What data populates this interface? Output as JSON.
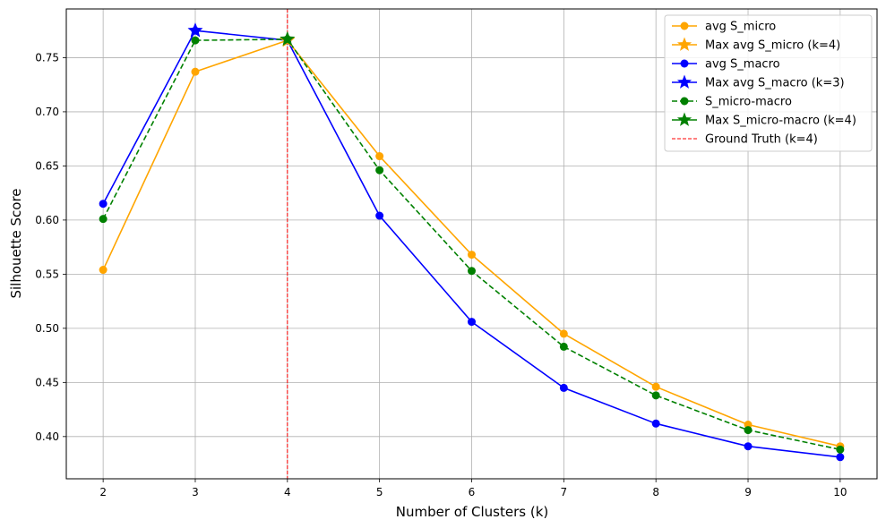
{
  "chart_data": {
    "type": "line",
    "title": "",
    "xlabel": "Number of Clusters (k)",
    "ylabel": "Silhouette Score",
    "x": [
      2,
      3,
      4,
      5,
      6,
      7,
      8,
      9,
      10
    ],
    "xlim": [
      1.6,
      10.4
    ],
    "ylim": [
      0.361,
      0.795
    ],
    "xticks": [
      2,
      3,
      4,
      5,
      6,
      7,
      8,
      9,
      10
    ],
    "yticks": [
      "0.40",
      "0.45",
      "0.50",
      "0.55",
      "0.60",
      "0.65",
      "0.70",
      "0.75"
    ],
    "grid": true,
    "legend_position": "top-right",
    "series": [
      {
        "name": "avg S_micro",
        "color": "#ffa500",
        "style": "solid",
        "marker": "circle",
        "values": [
          0.554,
          0.737,
          0.766,
          0.659,
          0.568,
          0.495,
          0.446,
          0.411,
          0.391
        ]
      },
      {
        "name": "avg S_macro",
        "color": "#0000ff",
        "style": "solid",
        "marker": "circle",
        "values": [
          0.615,
          0.775,
          0.766,
          0.604,
          0.506,
          0.445,
          0.412,
          0.391,
          0.381
        ]
      },
      {
        "name": "S_micro-macro",
        "color": "#008000",
        "style": "dashed",
        "marker": "circle",
        "values": [
          0.601,
          0.766,
          0.767,
          0.646,
          0.553,
          0.483,
          0.438,
          0.406,
          0.388
        ]
      }
    ],
    "max_markers": [
      {
        "name": "Max avg S_micro (k=4)",
        "color": "#ffa500",
        "x": 4,
        "y": 0.766
      },
      {
        "name": "Max avg S_macro (k=3)",
        "color": "#0000ff",
        "x": 3,
        "y": 0.775
      },
      {
        "name": "Max S_micro-macro (k=4)",
        "color": "#008000",
        "x": 4,
        "y": 0.767
      }
    ],
    "reference_line": {
      "name": "Ground Truth (k=4)",
      "color": "#ff0000",
      "x": 4,
      "style": "dashed"
    },
    "legend": [
      {
        "label": "avg S_micro",
        "color": "#ffa500",
        "marker": "circle",
        "style": "solid"
      },
      {
        "label": "Max avg S_micro (k=4)",
        "color": "#ffa500",
        "marker": "star",
        "style": "solid"
      },
      {
        "label": "avg S_macro",
        "color": "#0000ff",
        "marker": "circle",
        "style": "solid"
      },
      {
        "label": "Max avg S_macro (k=3)",
        "color": "#0000ff",
        "marker": "star",
        "style": "solid"
      },
      {
        "label": "S_micro-macro",
        "color": "#008000",
        "marker": "circle",
        "style": "dashed"
      },
      {
        "label": "Max S_micro-macro (k=4)",
        "color": "#008000",
        "marker": "star",
        "style": "solid"
      },
      {
        "label": "Ground Truth (k=4)",
        "color": "#ff0000",
        "marker": "none",
        "style": "dashed"
      }
    ]
  }
}
